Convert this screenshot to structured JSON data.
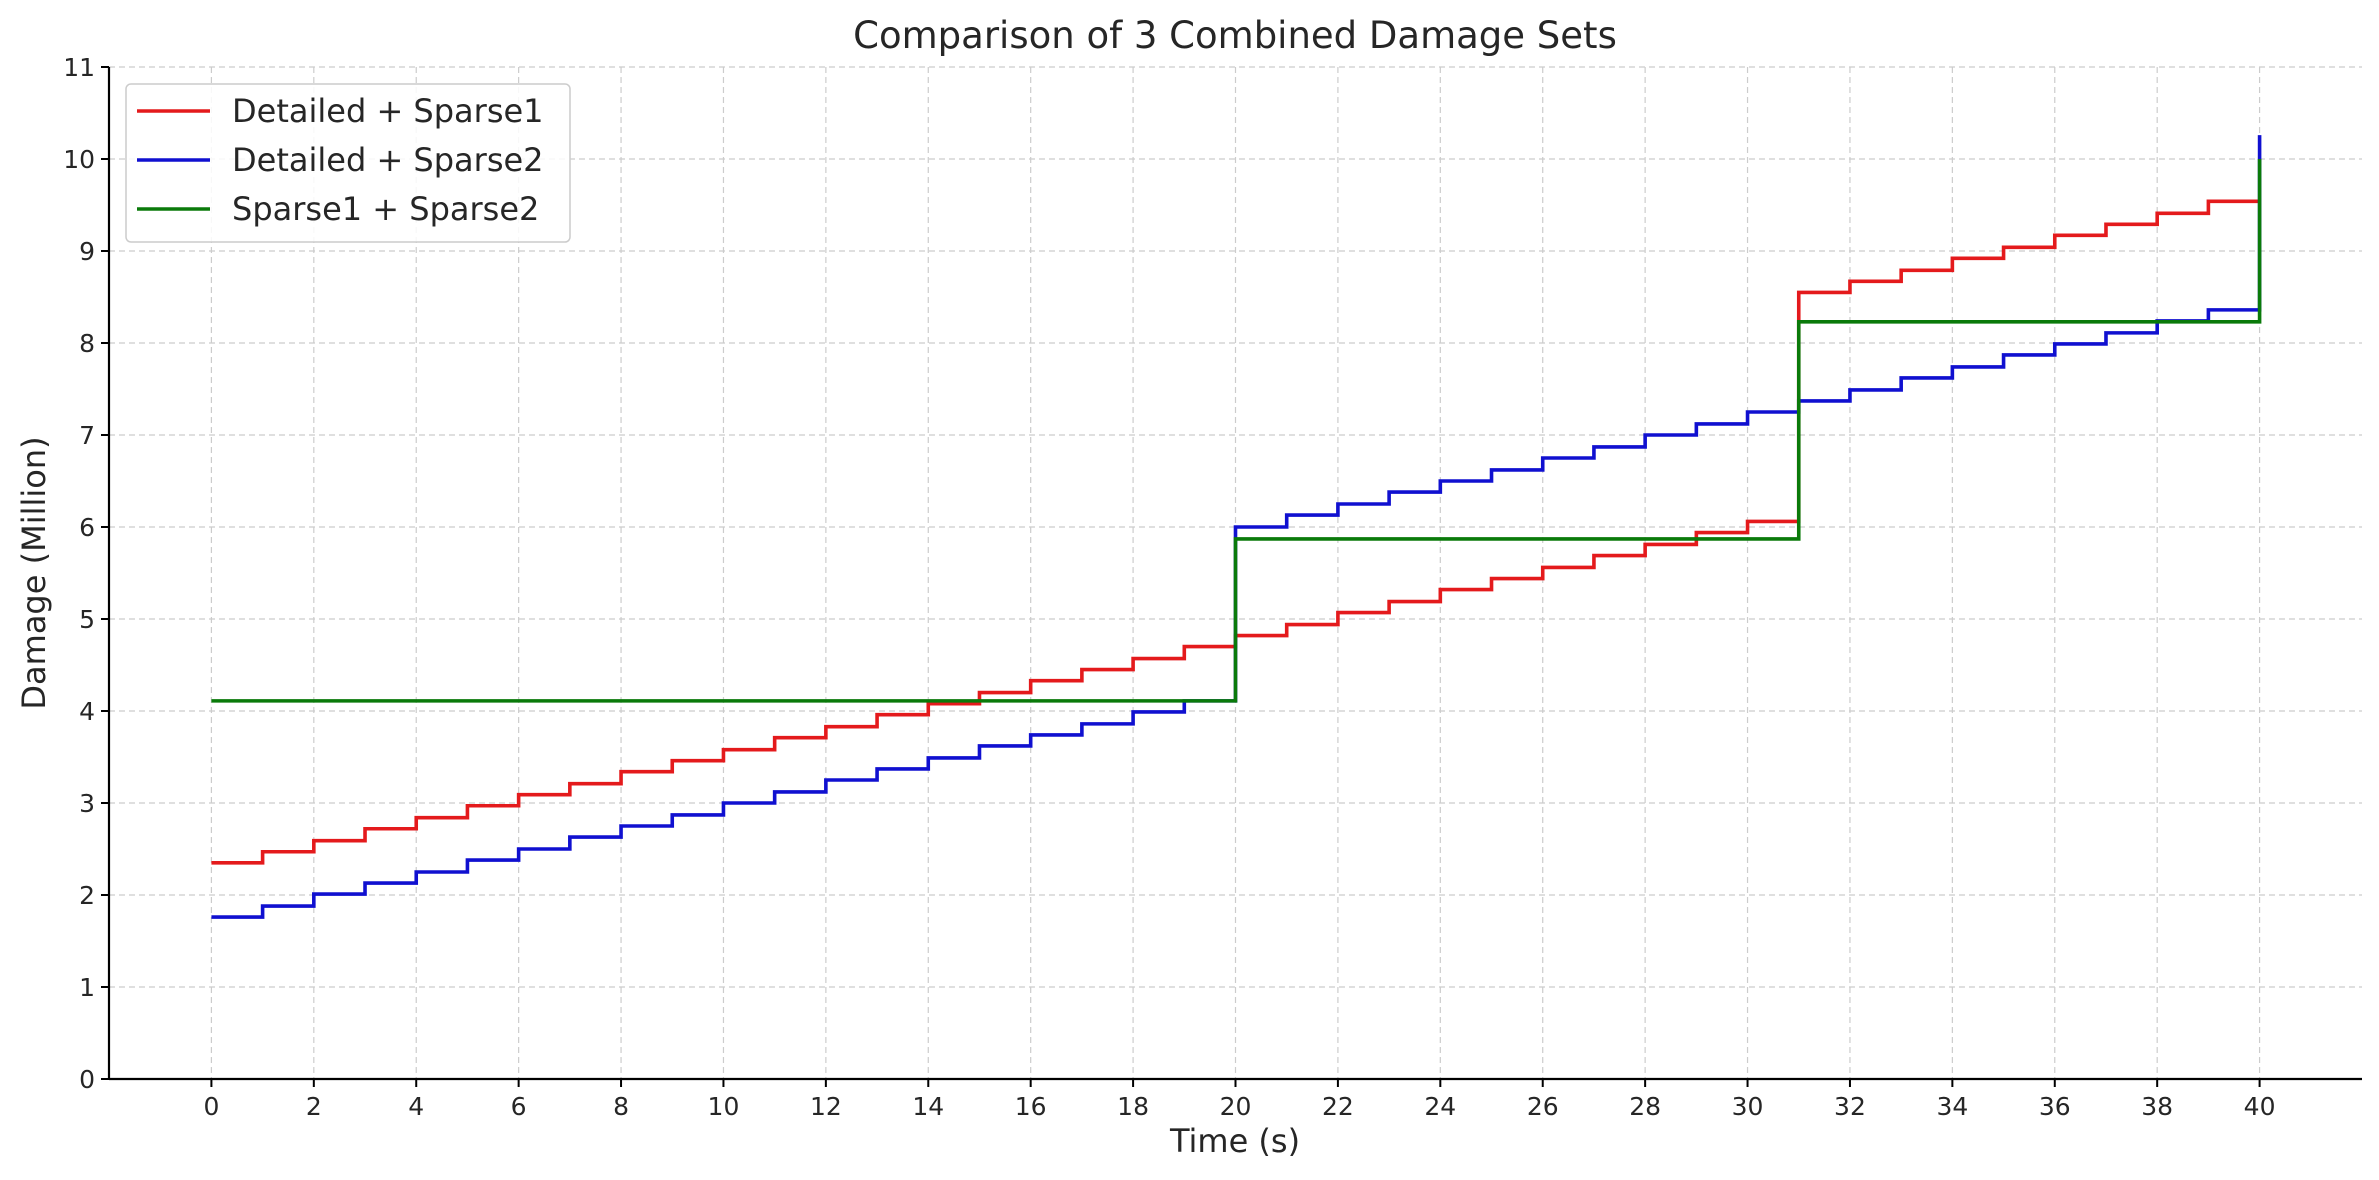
{
  "chart_data": {
    "type": "line",
    "step": "post",
    "title": "Comparison of 3 Combined Damage Sets",
    "xlabel": "Time (s)",
    "ylabel": "Damage (Million)",
    "xlim": [
      -2,
      42
    ],
    "ylim": [
      0,
      11
    ],
    "xticks": [
      0,
      2,
      4,
      6,
      8,
      10,
      12,
      14,
      16,
      18,
      20,
      22,
      24,
      26,
      28,
      30,
      32,
      34,
      36,
      38,
      40
    ],
    "yticks": [
      0,
      1,
      2,
      3,
      4,
      5,
      6,
      7,
      8,
      9,
      10,
      11
    ],
    "xtick_labels": [
      "0",
      "2",
      "4",
      "6",
      "8",
      "10",
      "12",
      "14",
      "16",
      "18",
      "20",
      "22",
      "24",
      "26",
      "28",
      "30",
      "32",
      "34",
      "36",
      "38",
      "40"
    ],
    "ytick_labels": [
      "0",
      "1",
      "2",
      "3",
      "4",
      "5",
      "6",
      "7",
      "8",
      "9",
      "10",
      "11"
    ],
    "grid": true,
    "legend_position": "top-left",
    "series": [
      {
        "name": "Detailed + Sparse1",
        "color": "#e41a1c",
        "x": [
          0,
          1,
          2,
          3,
          4,
          5,
          6,
          7,
          8,
          9,
          10,
          11,
          12,
          13,
          14,
          15,
          16,
          17,
          18,
          19,
          20,
          21,
          22,
          23,
          24,
          25,
          26,
          27,
          28,
          29,
          30,
          31,
          32,
          33,
          34,
          35,
          36,
          37,
          38,
          39,
          40
        ],
        "y": [
          2.35,
          2.47,
          2.59,
          2.72,
          2.84,
          2.97,
          3.09,
          3.21,
          3.34,
          3.46,
          3.58,
          3.71,
          3.83,
          3.96,
          4.08,
          4.2,
          4.33,
          4.45,
          4.57,
          4.7,
          4.82,
          4.94,
          5.07,
          5.19,
          5.32,
          5.44,
          5.56,
          5.69,
          5.81,
          5.94,
          6.06,
          8.55,
          8.67,
          8.79,
          8.92,
          9.04,
          9.17,
          9.29,
          9.41,
          9.54,
          9.54
        ]
      },
      {
        "name": "Detailed + Sparse2",
        "color": "#1010d0",
        "x": [
          0,
          1,
          2,
          3,
          4,
          5,
          6,
          7,
          8,
          9,
          10,
          11,
          12,
          13,
          14,
          15,
          16,
          17,
          18,
          19,
          20,
          21,
          22,
          23,
          24,
          25,
          26,
          27,
          28,
          29,
          30,
          31,
          32,
          33,
          34,
          35,
          36,
          37,
          38,
          39,
          40
        ],
        "y": [
          1.76,
          1.88,
          2.01,
          2.13,
          2.25,
          2.38,
          2.5,
          2.63,
          2.75,
          2.87,
          3.0,
          3.12,
          3.25,
          3.37,
          3.49,
          3.62,
          3.74,
          3.86,
          3.99,
          4.11,
          6.0,
          6.13,
          6.25,
          6.38,
          6.5,
          6.62,
          6.75,
          6.87,
          7.0,
          7.12,
          7.25,
          7.37,
          7.49,
          7.62,
          7.74,
          7.87,
          7.99,
          8.11,
          8.24,
          8.36,
          10.26
        ]
      },
      {
        "name": "Sparse1 + Sparse2",
        "color": "#0a7a0a",
        "x": [
          0,
          20,
          31,
          40
        ],
        "y": [
          4.11,
          5.87,
          8.23,
          10.0
        ]
      }
    ]
  }
}
